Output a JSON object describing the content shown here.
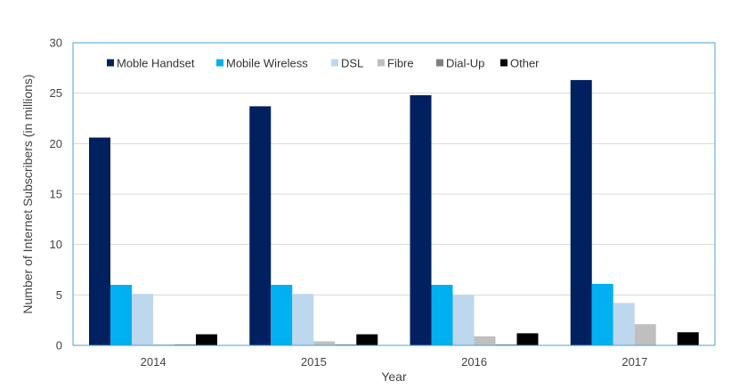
{
  "chart_data": {
    "type": "bar",
    "title": "",
    "xlabel": "Year",
    "ylabel": "Number of Internet Subscribers (in millions)",
    "ylim": [
      0,
      30
    ],
    "yticks": [
      0,
      5,
      10,
      15,
      20,
      25,
      30
    ],
    "grid": true,
    "legend_position": "top-left",
    "categories": [
      "2014",
      "2015",
      "2016",
      "2017"
    ],
    "series": [
      {
        "name": "Moble Handset",
        "color": "#002060",
        "values": [
          20.6,
          23.7,
          24.8,
          26.3
        ]
      },
      {
        "name": "Mobile Wireless",
        "color": "#00B0F0",
        "values": [
          6.0,
          6.0,
          6.0,
          6.1
        ]
      },
      {
        "name": "DSL",
        "color": "#BDD7EE",
        "values": [
          5.1,
          5.1,
          5.0,
          4.2
        ]
      },
      {
        "name": "Fibre",
        "color": "#BFBFBF",
        "values": [
          0.1,
          0.4,
          0.9,
          2.1
        ]
      },
      {
        "name": "Dial-Up",
        "color": "#7F7F7F",
        "values": [
          0.1,
          0.1,
          0.1,
          0.0
        ]
      },
      {
        "name": "Other",
        "color": "#000000",
        "values": [
          1.1,
          1.1,
          1.2,
          1.3
        ]
      }
    ]
  }
}
